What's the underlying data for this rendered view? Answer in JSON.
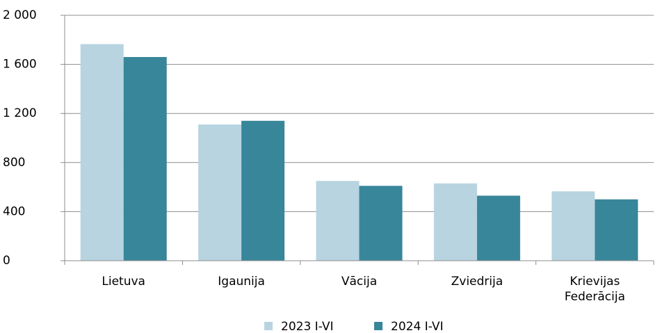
{
  "chart_data": {
    "type": "bar",
    "categories": [
      "Lietuva",
      "Igaunija",
      "Vācija",
      "Zviedrija",
      "Krievijas Federācija"
    ],
    "series": [
      {
        "name": "2023 I-VI",
        "color": "#b7d4e0",
        "values": [
          1765,
          1110,
          650,
          630,
          565
        ]
      },
      {
        "name": "2024 I-VI",
        "color": "#38869a",
        "values": [
          1660,
          1140,
          610,
          530,
          500
        ]
      }
    ],
    "ylim": [
      0,
      2000
    ],
    "yticks": [
      0,
      400,
      800,
      {
        "value": 1200,
        "label": "1 200"
      },
      {
        "value": 1600,
        "label": "1 600"
      },
      {
        "value": 2000,
        "label": "2 000"
      }
    ],
    "grid": true,
    "legend": "bottom"
  }
}
